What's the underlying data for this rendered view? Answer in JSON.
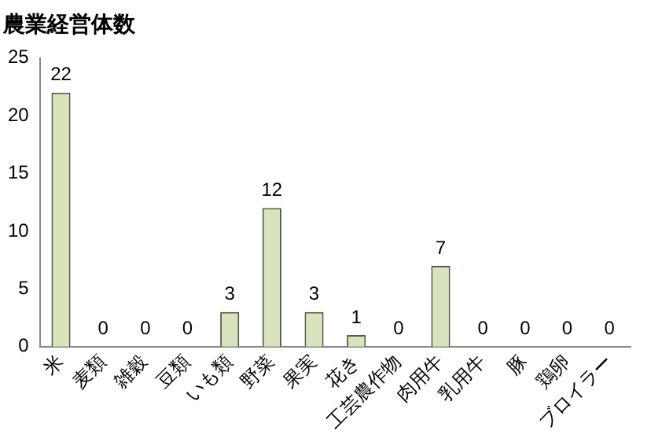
{
  "chart_data": {
    "type": "bar",
    "title": "農業経営体数",
    "categories": [
      "米",
      "麦類",
      "雑穀",
      "豆類",
      "いも類",
      "野菜",
      "果実",
      "花き",
      "工芸農作物",
      "肉用牛",
      "乳用牛",
      "豚",
      "鶏卵",
      "ブロイラー"
    ],
    "values": [
      22,
      0,
      0,
      0,
      3,
      12,
      3,
      1,
      0,
      7,
      0,
      0,
      0,
      0
    ],
    "color": "#d7e4bd",
    "ylim": [
      0,
      25
    ],
    "yticks": [
      0,
      5,
      10,
      15,
      20,
      25
    ],
    "grid": false,
    "legend": false,
    "data_labels": true
  }
}
